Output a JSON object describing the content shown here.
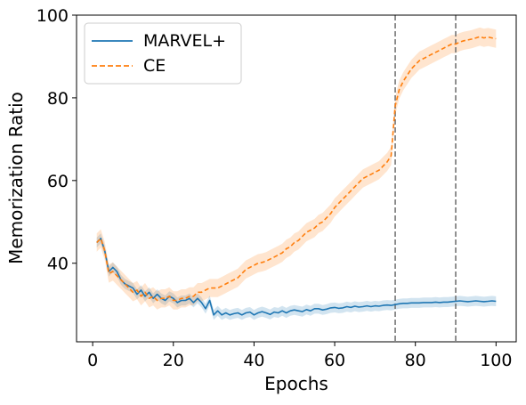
{
  "chart_data": {
    "type": "line",
    "xlabel": "Epochs",
    "ylabel": "Memorization Ratio",
    "xlim": [
      -4,
      105
    ],
    "ylim": [
      21,
      100
    ],
    "xticks": [
      0,
      20,
      40,
      60,
      80,
      100
    ],
    "yticks": [
      40,
      60,
      80,
      100
    ],
    "grid": false,
    "legend_position": "top-left",
    "vlines": [
      75,
      90
    ],
    "vline_color": "#6b6b6b",
    "series": [
      {
        "name": "MARVEL+",
        "color": "#1f77b4",
        "style": "solid",
        "x": [
          1,
          2,
          3,
          4,
          5,
          6,
          7,
          8,
          9,
          10,
          11,
          12,
          13,
          14,
          15,
          16,
          17,
          18,
          19,
          20,
          21,
          22,
          23,
          24,
          25,
          26,
          27,
          28,
          29,
          30,
          31,
          32,
          33,
          34,
          35,
          36,
          37,
          38,
          39,
          40,
          41,
          42,
          43,
          44,
          45,
          46,
          47,
          48,
          49,
          50,
          51,
          52,
          53,
          54,
          55,
          56,
          57,
          58,
          59,
          60,
          61,
          62,
          63,
          64,
          65,
          66,
          67,
          68,
          69,
          70,
          71,
          72,
          73,
          74,
          75,
          76,
          77,
          78,
          79,
          80,
          81,
          82,
          83,
          84,
          85,
          86,
          87,
          88,
          89,
          90,
          91,
          92,
          93,
          94,
          95,
          96,
          97,
          98,
          99,
          100
        ],
        "y": [
          45,
          46,
          43,
          38,
          39,
          38,
          36,
          35,
          34.5,
          34,
          32.5,
          33.5,
          32,
          33,
          31.5,
          32.5,
          31.5,
          31,
          32,
          31.5,
          30.5,
          31,
          31,
          31.5,
          30.5,
          31.5,
          30.5,
          29,
          31,
          27.5,
          28.5,
          27.5,
          28,
          27.5,
          27.8,
          28,
          27.5,
          28,
          28.2,
          27.5,
          28,
          28.3,
          28,
          27.6,
          28.2,
          28,
          28.5,
          28,
          28.5,
          28.7,
          28.5,
          28.3,
          28.8,
          28.5,
          29,
          29,
          28.7,
          28.9,
          29.2,
          29.3,
          29.1,
          29.2,
          29.5,
          29.3,
          29.6,
          29.4,
          29.5,
          29.7,
          29.5,
          29.7,
          29.6,
          29.8,
          29.9,
          29.8,
          30,
          30.2,
          30.3,
          30.3,
          30.4,
          30.4,
          30.4,
          30.5,
          30.5,
          30.5,
          30.6,
          30.5,
          30.6,
          30.6,
          30.7,
          30.8,
          30.9,
          30.8,
          30.7,
          30.8,
          30.9,
          30.8,
          30.7,
          30.8,
          30.9,
          30.8
        ],
        "band": 1.2
      },
      {
        "name": "CE",
        "color": "#ff7f0e",
        "style": "dashed",
        "x": [
          1,
          2,
          3,
          4,
          5,
          6,
          7,
          8,
          9,
          10,
          11,
          12,
          13,
          14,
          15,
          16,
          17,
          18,
          19,
          20,
          21,
          22,
          23,
          24,
          25,
          26,
          27,
          28,
          29,
          30,
          31,
          32,
          33,
          34,
          35,
          36,
          37,
          38,
          39,
          40,
          41,
          42,
          43,
          44,
          45,
          46,
          47,
          48,
          49,
          50,
          51,
          52,
          53,
          54,
          55,
          56,
          57,
          58,
          59,
          60,
          61,
          62,
          63,
          64,
          65,
          66,
          67,
          68,
          69,
          70,
          71,
          72,
          73,
          74,
          75,
          76,
          77,
          78,
          79,
          80,
          81,
          82,
          83,
          84,
          85,
          86,
          87,
          88,
          89,
          90,
          91,
          92,
          93,
          94,
          95,
          96,
          97,
          98,
          99,
          100
        ],
        "y": [
          45,
          46,
          43,
          37.5,
          38,
          37,
          36,
          35,
          34,
          33,
          33.5,
          32,
          33,
          31.5,
          32,
          31,
          31.5,
          31.5,
          32,
          31,
          31,
          31.5,
          31.5,
          32,
          32,
          33,
          33,
          33.5,
          34,
          34,
          34,
          34.5,
          35,
          35.5,
          36,
          36.5,
          37.5,
          38.5,
          39,
          39.5,
          40,
          40.2,
          40.5,
          41,
          41.5,
          42,
          42.5,
          43.5,
          44,
          45,
          45.5,
          46.5,
          47.5,
          48,
          48.5,
          49.5,
          50,
          51,
          52,
          53.5,
          54.5,
          55.5,
          56.5,
          57.5,
          58.5,
          59.5,
          60.5,
          61,
          61.5,
          62,
          62.5,
          63.5,
          64.5,
          66,
          78,
          82,
          84,
          85.5,
          87,
          88,
          89,
          89.5,
          90,
          90.5,
          91,
          91.5,
          92,
          92.5,
          93,
          93,
          93.5,
          93.8,
          94,
          94.2,
          94.5,
          94.8,
          94.5,
          94.7,
          94.5,
          94.3
        ],
        "band": 2.2
      }
    ]
  }
}
